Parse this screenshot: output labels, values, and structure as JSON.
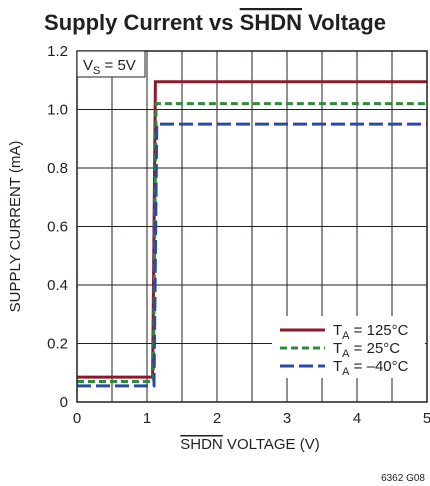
{
  "chart_data": {
    "type": "line",
    "title": "Supply Current vs SHDN Voltage",
    "title_overline": "SHDN",
    "xlabel": "SHDN VOLTAGE (V)",
    "xlabel_overline": "SHDN",
    "ylabel": "SUPPLY CURRENT (mA)",
    "xlim": [
      0,
      5
    ],
    "ylim": [
      0,
      1.2
    ],
    "xticks": [
      0,
      1,
      2,
      3,
      4,
      5
    ],
    "yticks": [
      0,
      0.2,
      0.4,
      0.6,
      0.8,
      1.0,
      1.2
    ],
    "xtick_labels": [
      "0",
      "1",
      "2",
      "3",
      "4",
      "5"
    ],
    "ytick_labels": [
      "0",
      "0.2",
      "0.4",
      "0.6",
      "0.8",
      "1.0",
      "1.2"
    ],
    "grid": true,
    "grid_minor_x": [
      0.5,
      1.5,
      2.5,
      3.5,
      4.5
    ],
    "annotation": {
      "text": "VS = 5V",
      "main": "V",
      "sub": "S",
      "rest": " = 5V"
    },
    "legend_position": "bottom-right",
    "series": [
      {
        "name": "TA = 125°C",
        "label_main": "T",
        "label_sub": "A",
        "label_rest": " = 125°C",
        "color": "#8b1a2b",
        "dash": "solid",
        "x": [
          0,
          1.08,
          1.12,
          5
        ],
        "y": [
          0.085,
          0.085,
          1.095,
          1.095
        ]
      },
      {
        "name": "TA = 25°C",
        "label_main": "T",
        "label_sub": "A",
        "label_rest": " = 25°C",
        "color": "#2e8b3c",
        "dash": "dashed",
        "x": [
          0,
          1.09,
          1.13,
          5
        ],
        "y": [
          0.07,
          0.07,
          1.02,
          1.02
        ]
      },
      {
        "name": "TA = –40°C",
        "label_main": "T",
        "label_sub": "A",
        "label_rest": " = –40°C",
        "color": "#2b4aa6",
        "dash": "longdash",
        "x": [
          0,
          1.1,
          1.14,
          5
        ],
        "y": [
          0.055,
          0.055,
          0.95,
          0.95
        ]
      }
    ],
    "footnote": "6362 G08"
  }
}
